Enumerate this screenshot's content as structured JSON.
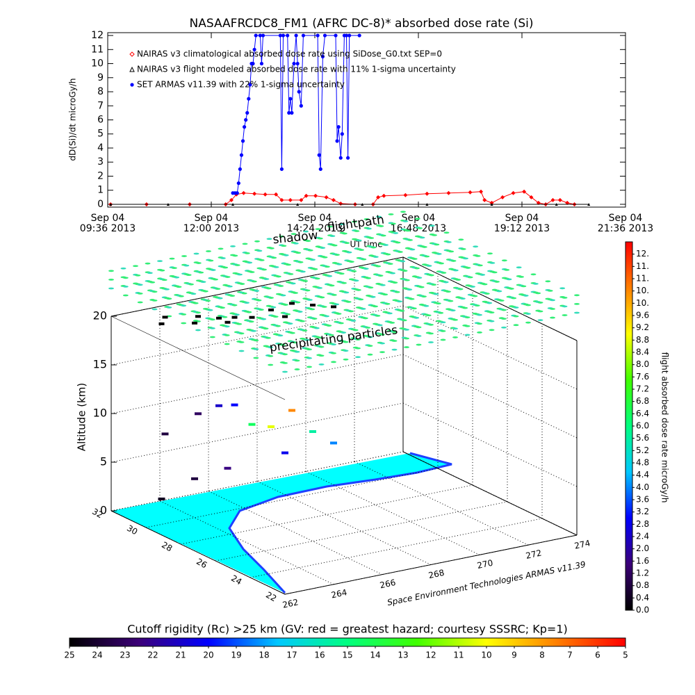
{
  "chart_data": [
    {
      "type": "line",
      "title": "NASAAFRCDC8_FM1 (AFRC DC-8)* absorbed dose rate (Si)",
      "x_label": "UT time",
      "y_label": "dD(Si)/dt microGy/h",
      "xlim": [
        "2013-09-04 09:36",
        "2013-09-04 21:36"
      ],
      "xticks": [
        {
          "value": "2013-09-04 09:36",
          "label": [
            "Sep 04",
            "09:36 2013"
          ]
        },
        {
          "value": "2013-09-04 12:00",
          "label": [
            "Sep 04",
            "12:00 2013"
          ]
        },
        {
          "value": "2013-09-04 14:24",
          "label": [
            "Sep 04",
            "14:24 2013"
          ]
        },
        {
          "value": "2013-09-04 16:48",
          "label": [
            "Sep 04",
            "16:48 2013"
          ]
        },
        {
          "value": "2013-09-04 19:12",
          "label": [
            "Sep 04",
            "19:12 2013"
          ]
        },
        {
          "value": "2013-09-04 21:36",
          "label": [
            "Sep 04",
            "21:36 2013"
          ]
        }
      ],
      "ylim": [
        -0.2,
        12.2
      ],
      "yticks": [
        0,
        1,
        2,
        3,
        4,
        5,
        6,
        7,
        8,
        9,
        10,
        11,
        12
      ],
      "series": [
        {
          "name": "NAIRAS v3 climatological absorbed dose rate using SiDose_G0.txt SEP=0",
          "color": "#ff0000",
          "marker": "diamond",
          "x": [
            "2013-09-04 09:40",
            "2013-09-04 10:30",
            "2013-09-04 11:30",
            "2013-09-04 12:20",
            "2013-09-04 12:28",
            "2013-09-04 12:35",
            "2013-09-04 12:45",
            "2013-09-04 13:00",
            "2013-09-04 13:15",
            "2013-09-04 13:30",
            "2013-09-04 13:38",
            "2013-09-04 13:50",
            "2013-09-04 14:05",
            "2013-09-04 14:12",
            "2013-09-04 14:25",
            "2013-09-04 14:40",
            "2013-09-04 14:50",
            "2013-09-04 15:00",
            "2013-09-04 15:20",
            "2013-09-04 15:45",
            "2013-09-04 15:52",
            "2013-09-04 16:00",
            "2013-09-04 16:30",
            "2013-09-04 17:00",
            "2013-09-04 17:30",
            "2013-09-04 18:00",
            "2013-09-04 18:15",
            "2013-09-04 18:20",
            "2013-09-04 18:30",
            "2013-09-04 18:45",
            "2013-09-04 19:00",
            "2013-09-04 19:15",
            "2013-09-04 19:25",
            "2013-09-04 19:35",
            "2013-09-04 19:45",
            "2013-09-04 19:55",
            "2013-09-04 20:05",
            "2013-09-04 20:15",
            "2013-09-04 20:25"
          ],
          "values": [
            0,
            0,
            0,
            0,
            0.3,
            0.7,
            0.8,
            0.75,
            0.7,
            0.7,
            0.3,
            0.3,
            0.3,
            0.6,
            0.6,
            0.5,
            0.3,
            0.05,
            0,
            0,
            0.5,
            0.6,
            0.65,
            0.75,
            0.8,
            0.85,
            0.9,
            0.3,
            0.1,
            0.5,
            0.8,
            0.9,
            0.5,
            0.1,
            0,
            0.3,
            0.3,
            0.1,
            0
          ]
        },
        {
          "name": "NAIRAS v3 flight modeled absorbed dose rate with 11% 1-sigma uncertainty",
          "color": "#000000",
          "marker": "triangle",
          "x": [
            "2013-09-04 09:40",
            "2013-09-04 11:00",
            "2013-09-04 12:30",
            "2013-09-04 14:00",
            "2013-09-04 15:30",
            "2013-09-04 17:00",
            "2013-09-04 18:30",
            "2013-09-04 20:00",
            "2013-09-04 20:45"
          ],
          "values": [
            0,
            0,
            0,
            0,
            0,
            0,
            0,
            0,
            0
          ]
        },
        {
          "name": "SET ARMAS v11.39 with 22% 1-sigma uncertainty",
          "color": "#0000ff",
          "marker": "circle",
          "x": [
            "2013-09-04 12:30",
            "2013-09-04 12:33",
            "2013-09-04 12:36",
            "2013-09-04 12:38",
            "2013-09-04 12:40",
            "2013-09-04 12:42",
            "2013-09-04 12:44",
            "2013-09-04 12:46",
            "2013-09-04 12:48",
            "2013-09-04 12:50",
            "2013-09-04 12:52",
            "2013-09-04 12:54",
            "2013-09-04 12:56",
            "2013-09-04 12:58",
            "2013-09-04 13:00",
            "2013-09-04 13:02",
            "2013-09-04 13:08",
            "2013-09-04 13:10",
            "2013-09-04 13:12",
            "2013-09-04 13:36",
            "2013-09-04 13:38",
            "2013-09-04 13:40",
            "2013-09-04 13:46",
            "2013-09-04 13:48",
            "2013-09-04 13:50",
            "2013-09-04 13:52",
            "2013-09-04 13:55",
            "2013-09-04 13:58",
            "2013-09-04 14:00",
            "2013-09-04 14:02",
            "2013-09-04 14:05",
            "2013-09-04 14:08",
            "2013-09-04 14:28",
            "2013-09-04 14:30",
            "2013-09-04 14:32",
            "2013-09-04 14:35",
            "2013-09-04 14:38",
            "2013-09-04 14:53",
            "2013-09-04 14:55",
            "2013-09-04 14:57",
            "2013-09-04 15:00",
            "2013-09-04 15:02",
            "2013-09-04 15:05",
            "2013-09-04 15:08",
            "2013-09-04 15:10",
            "2013-09-04 15:12",
            "2013-09-04 15:26"
          ],
          "values": [
            0.8,
            0.8,
            0.8,
            1.5,
            2.5,
            3.5,
            4.5,
            5.5,
            6,
            6.5,
            7.5,
            8.5,
            10,
            10,
            11,
            12,
            12,
            10,
            12,
            12,
            2.5,
            12,
            12,
            6.5,
            7.5,
            6.5,
            10,
            12,
            10,
            8,
            7,
            12,
            12,
            3.5,
            2.5,
            10.5,
            12,
            12,
            4.5,
            5.5,
            3.3,
            5,
            12,
            12,
            3.3,
            12,
            12
          ]
        }
      ]
    },
    {
      "type": "scatter3d",
      "x_label": "Space Environment Technologies ARMAS v11.39",
      "z_label": "Altitude (km)",
      "annotations": [
        "shadow",
        "flightpath",
        "precipitating particles"
      ],
      "xlim": [
        262,
        274
      ],
      "xticks": [
        262,
        264,
        266,
        268,
        270,
        272,
        274
      ],
      "ylim": [
        22,
        32
      ],
      "yticks": [
        22,
        24,
        26,
        28,
        30,
        32
      ],
      "zlim": [
        0,
        20
      ],
      "zticks": [
        0,
        5,
        10,
        15,
        20
      ],
      "x": [
        263.5,
        264.5,
        265,
        265.5,
        266,
        267,
        268,
        268.5,
        269,
        267,
        265,
        264,
        263
      ],
      "y": [
        31,
        30.5,
        30,
        29.8,
        29.5,
        29.8,
        30,
        29.5,
        29,
        29,
        29.5,
        30,
        30.5
      ],
      "z": [
        8,
        10,
        11,
        11,
        9,
        8,
        9,
        7,
        6,
        6,
        5,
        4,
        2
      ],
      "values": [
        0.8,
        1.2,
        2.4,
        3.0,
        6.4,
        8.8,
        10.4,
        5.6,
        4.0,
        2.8,
        1.6,
        0.8,
        0.4
      ]
    },
    {
      "type": "colorbar",
      "orientation": "vertical",
      "label": "flight absorbed dose rate microGy/h",
      "lim": [
        0,
        12
      ],
      "colors": [
        "#000000",
        "#3c0078",
        "#0000ff",
        "#00c8ff",
        "#00ff80",
        "#40ff00",
        "#ffff00",
        "#ff8000",
        "#ff0000"
      ],
      "ticks": [
        {
          "value": 0,
          "label": "0.0"
        },
        {
          "value": 0.4,
          "label": "0.4"
        },
        {
          "value": 0.8,
          "label": "0.8"
        },
        {
          "value": 1.2,
          "label": "1.2"
        },
        {
          "value": 1.6,
          "label": "1.6"
        },
        {
          "value": 2,
          "label": "2.0"
        },
        {
          "value": 2.4,
          "label": "2.4"
        },
        {
          "value": 2.8,
          "label": "2.8"
        },
        {
          "value": 3.2,
          "label": "3.2"
        },
        {
          "value": 3.6,
          "label": "3.6"
        },
        {
          "value": 4,
          "label": "4.0"
        },
        {
          "value": 4.4,
          "label": "4.4"
        },
        {
          "value": 4.8,
          "label": "4.8"
        },
        {
          "value": 5.2,
          "label": "5.2"
        },
        {
          "value": 5.6,
          "label": "5.6"
        },
        {
          "value": 6,
          "label": "6.0"
        },
        {
          "value": 6.4,
          "label": "6.4"
        },
        {
          "value": 6.8,
          "label": "6.8"
        },
        {
          "value": 7.2,
          "label": "7.2"
        },
        {
          "value": 7.6,
          "label": "7.6"
        },
        {
          "value": 8,
          "label": "8.0"
        },
        {
          "value": 8.4,
          "label": "8.4"
        },
        {
          "value": 8.8,
          "label": "8.8"
        },
        {
          "value": 9.2,
          "label": "9.2"
        },
        {
          "value": 9.6,
          "label": "9.6"
        },
        {
          "value": 10,
          "label": "10."
        },
        {
          "value": 10.4,
          "label": "10."
        },
        {
          "value": 10.8,
          "label": "11."
        },
        {
          "value": 11.2,
          "label": "11."
        },
        {
          "value": 11.6,
          "label": "12."
        }
      ]
    },
    {
      "type": "colorbar",
      "orientation": "horizontal",
      "label": "Cutoff rigidity (Rc) >25 km (GV: red = greatest hazard; courtesy SSSRC; Kp=1)",
      "lim": [
        25,
        5
      ],
      "colors": [
        "#000000",
        "#3c0078",
        "#0000ff",
        "#00c8ff",
        "#00ff80",
        "#40ff00",
        "#ffff00",
        "#ff8000",
        "#ff0000"
      ],
      "ticks": [
        25,
        24,
        23,
        22,
        21,
        20,
        19,
        18,
        17,
        16,
        15,
        14,
        13,
        12,
        11,
        10,
        9,
        8,
        7,
        6,
        5
      ]
    }
  ]
}
